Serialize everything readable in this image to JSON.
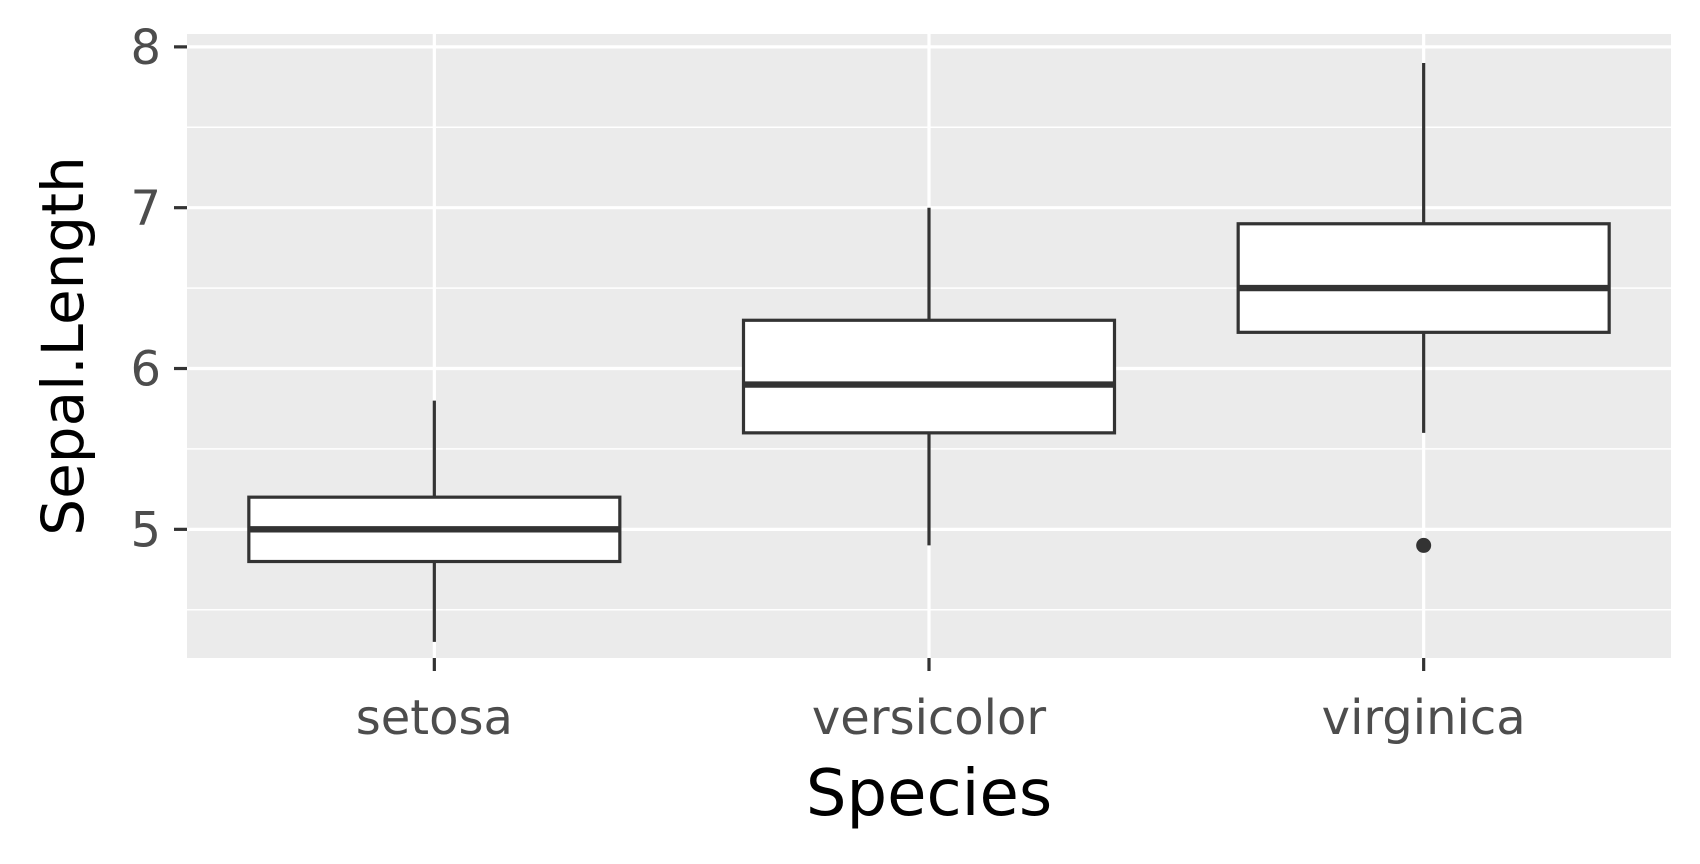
{
  "colors": {
    "panel_background": "#ebebeb",
    "grid_line": "#ffffff",
    "box_fill": "#ffffff",
    "box_stroke": "#333333",
    "tick_text": "#4d4d4d",
    "axis_title": "#000000"
  },
  "chart_data": {
    "type": "boxplot",
    "title": "",
    "xlabel": "Species",
    "ylabel": "Sepal.Length",
    "ylim": [
      4.2,
      8.08
    ],
    "y_ticks": [
      5,
      6,
      7,
      8
    ],
    "y_tick_labels": [
      "5",
      "6",
      "7",
      "8"
    ],
    "y_minor_ticks": [
      4.5,
      5.5,
      6.5,
      7.5
    ],
    "categories": [
      "setosa",
      "versicolor",
      "virginica"
    ],
    "grid": true,
    "legend": "none",
    "boxes": [
      {
        "category": "setosa",
        "whisker_low": 4.3,
        "q1": 4.8,
        "median": 5.0,
        "q3": 5.2,
        "whisker_high": 5.8,
        "outliers": []
      },
      {
        "category": "versicolor",
        "whisker_low": 4.9,
        "q1": 5.6,
        "median": 5.9,
        "q3": 6.3,
        "whisker_high": 7.0,
        "outliers": []
      },
      {
        "category": "virginica",
        "whisker_low": 5.6,
        "q1": 6.225,
        "median": 6.5,
        "q3": 6.9,
        "whisker_high": 7.9,
        "outliers": [
          4.9
        ]
      }
    ]
  }
}
